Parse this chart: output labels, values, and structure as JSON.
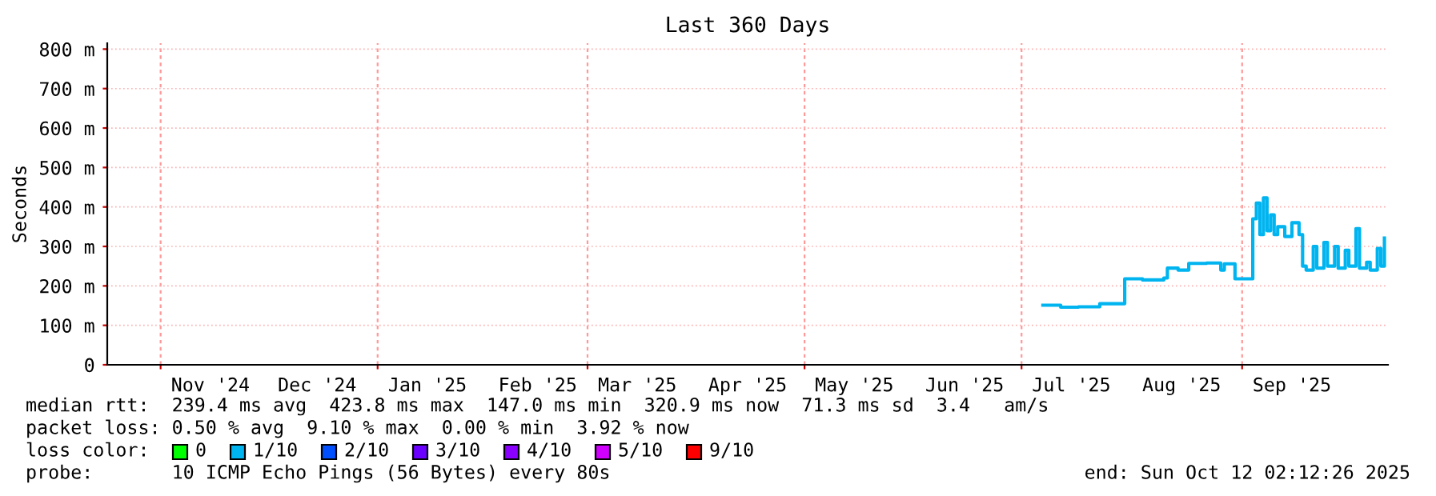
{
  "chart_data": {
    "type": "step",
    "title": "Last 360 Days",
    "ylabel": "Seconds",
    "x": [
      "2025-07-07",
      "2025-07-12",
      "2025-07-17",
      "2025-07-23",
      "2025-07-30",
      "2025-08-04",
      "2025-08-10",
      "2025-08-11",
      "2025-08-14",
      "2025-08-17",
      "2025-08-22",
      "2025-08-26",
      "2025-08-27",
      "2025-08-30",
      "2025-09-04",
      "2025-09-05",
      "2025-09-06",
      "2025-09-07",
      "2025-09-08",
      "2025-09-09",
      "2025-09-10",
      "2025-09-11",
      "2025-09-13",
      "2025-09-15",
      "2025-09-17",
      "2025-09-18",
      "2025-09-19",
      "2025-09-21",
      "2025-09-22",
      "2025-09-24",
      "2025-09-25",
      "2025-09-27",
      "2025-09-28",
      "2025-09-30",
      "2025-10-01",
      "2025-10-03",
      "2025-10-04",
      "2025-10-06",
      "2025-10-07",
      "2025-10-09",
      "2025-10-10",
      "2025-10-11"
    ],
    "series": [
      {
        "color": "#00b4f0",
        "values": [
          151,
          146,
          147,
          155,
          218,
          215,
          220,
          245,
          240,
          257,
          258,
          240,
          256,
          218,
          370,
          410,
          330,
          423,
          340,
          380,
          330,
          350,
          325,
          360,
          330,
          250,
          240,
          300,
          245,
          310,
          250,
          300,
          245,
          290,
          250,
          345,
          245,
          260,
          240,
          295,
          250,
          321
        ]
      }
    ],
    "xlim": [
      "2024-10-17",
      "2025-10-12"
    ],
    "xticks": [
      {
        "value": "2024-11-01",
        "label": null
      },
      {
        "value": "2024-11-15",
        "label": "Nov '24"
      },
      {
        "value": "2024-12-15",
        "label": "Dec '24"
      },
      {
        "value": "2025-01-01",
        "label": null
      },
      {
        "value": "2025-01-15",
        "label": "Jan '25"
      },
      {
        "value": "2025-02-15",
        "label": "Feb '25"
      },
      {
        "value": "2025-03-01",
        "label": null
      },
      {
        "value": "2025-03-15",
        "label": "Mar '25"
      },
      {
        "value": "2025-04-15",
        "label": "Apr '25"
      },
      {
        "value": "2025-05-01",
        "label": null
      },
      {
        "value": "2025-05-15",
        "label": "May '25"
      },
      {
        "value": "2025-06-15",
        "label": "Jun '25"
      },
      {
        "value": "2025-07-01",
        "label": null
      },
      {
        "value": "2025-07-15",
        "label": "Jul '25"
      },
      {
        "value": "2025-08-15",
        "label": "Aug '25"
      },
      {
        "value": "2025-09-01",
        "label": null
      },
      {
        "value": "2025-09-15",
        "label": "Sep '25"
      }
    ],
    "ylim": [
      0,
      815
    ],
    "yticks": [
      0,
      {
        "value": 100,
        "label": "100 m"
      },
      {
        "value": 200,
        "label": "200 m"
      },
      {
        "value": 300,
        "label": "300 m"
      },
      {
        "value": 400,
        "label": "400 m"
      },
      {
        "value": 500,
        "label": "500 m"
      },
      {
        "value": 600,
        "label": "600 m"
      },
      {
        "value": 700,
        "label": "700 m"
      },
      {
        "value": 800,
        "label": "800 m"
      }
    ],
    "grid": true,
    "legend": false,
    "annotations": [
      "median rtt:  239.4 ms avg  423.8 ms max  147.0 ms min  320.9 ms now  71.3 ms sd  3.4   am/s",
      "packet loss: 0.50 % avg  9.10 % max  0.00 % min  3.92 % now",
      "loss color:",
      "0",
      "1/10",
      "2/10",
      "3/10",
      "4/10",
      "5/10",
      "9/10",
      "probe:       10 ICMP Echo Pings (56 Bytes) every 80s",
      "end: Sun Oct 12 02:12:26 2025"
    ]
  }
}
